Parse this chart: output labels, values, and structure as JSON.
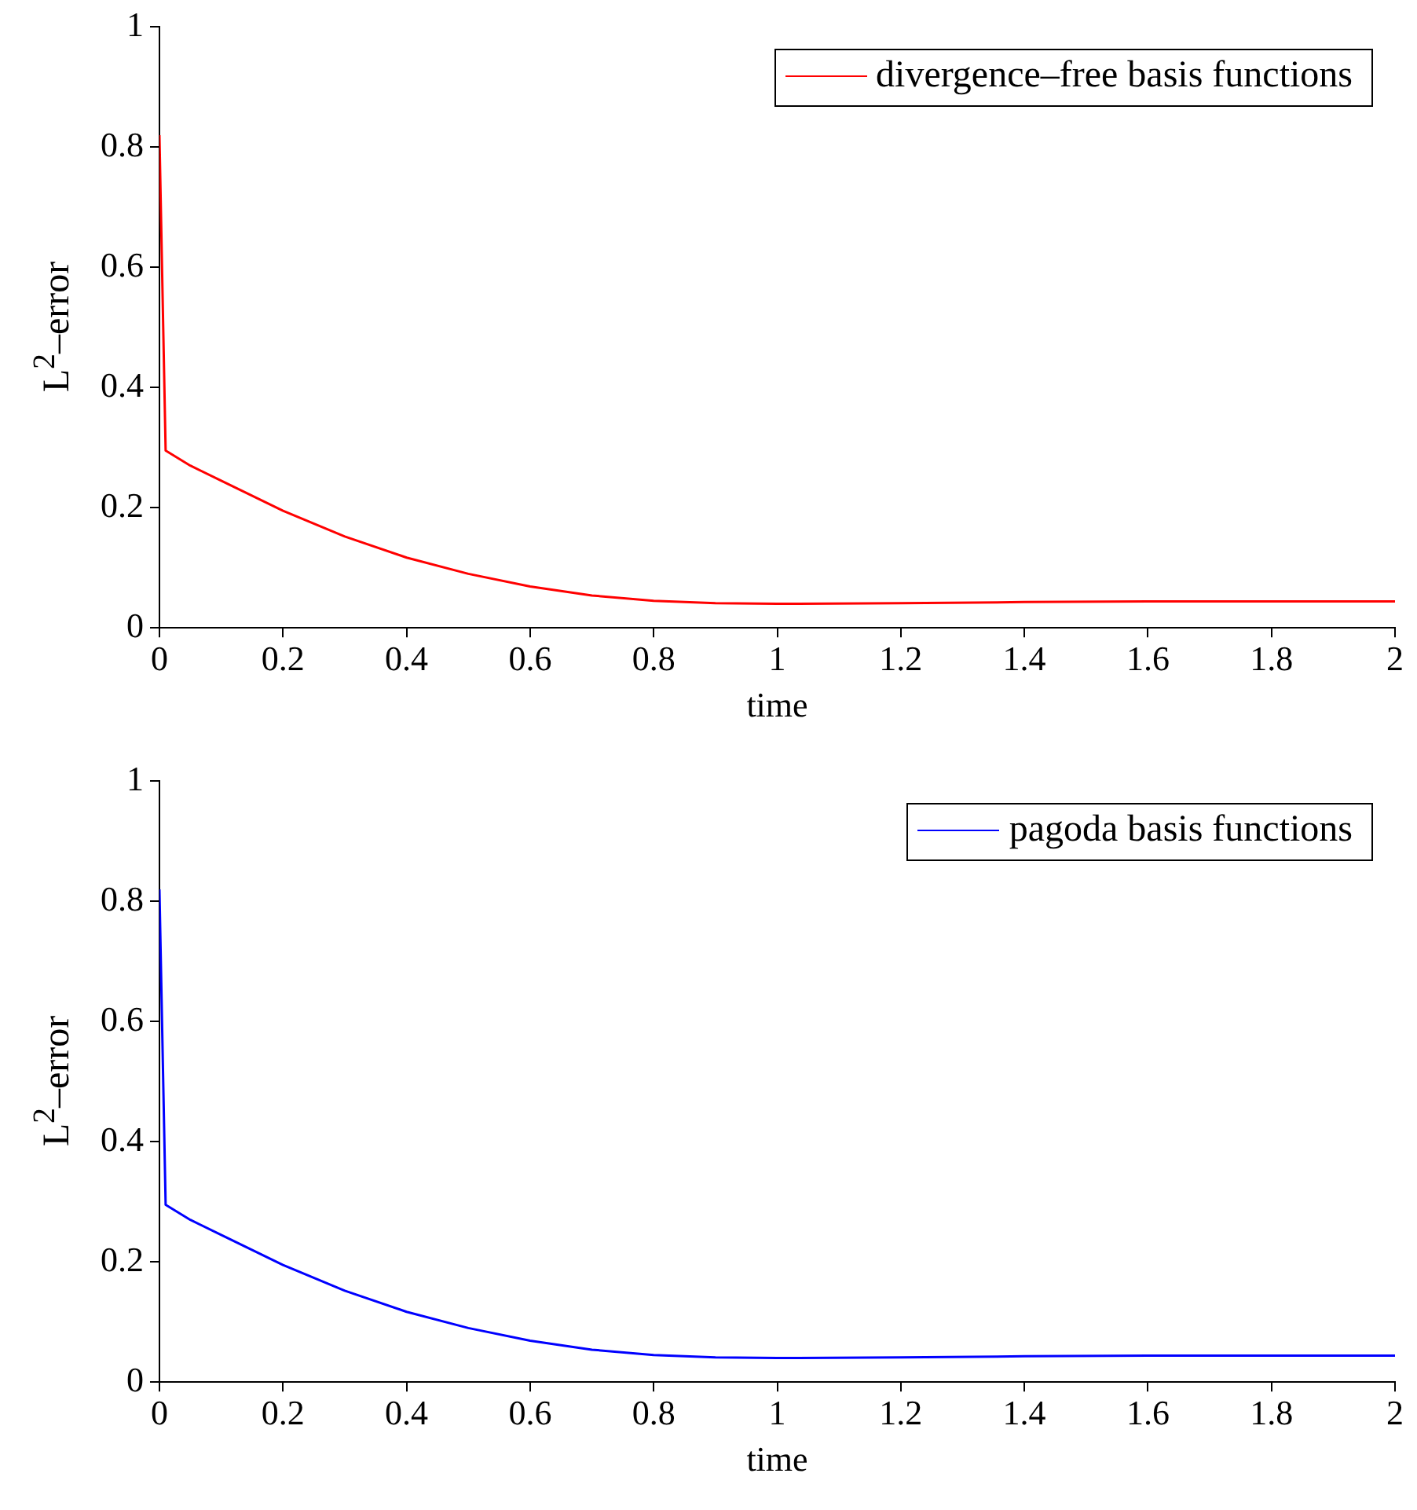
{
  "chart_data": [
    {
      "type": "line",
      "xlabel": "time",
      "ylabel": "L$^{2}$–error",
      "xlim": [
        0,
        2
      ],
      "ylim": [
        0,
        1
      ],
      "xticks": [
        0,
        0.2,
        0.4,
        0.6,
        0.8,
        1,
        1.2,
        1.4,
        1.6,
        1.8,
        2
      ],
      "yticks": [
        0,
        0.2,
        0.4,
        0.6,
        0.8,
        1
      ],
      "grid": false,
      "legend": "top right",
      "marker": "none",
      "x": [
        0,
        0.01,
        0.05,
        0.1,
        0.2,
        0.3,
        0.4,
        0.5,
        0.6,
        0.7,
        0.8,
        0.9,
        1.0,
        1.2,
        1.4,
        1.6,
        1.8,
        2.0
      ],
      "series": [
        {
          "name": "divergence–free basis functions",
          "color": "#ff0000",
          "values": [
            0.82,
            0.295,
            0.27,
            0.245,
            0.195,
            0.152,
            0.117,
            0.09,
            0.069,
            0.054,
            0.045,
            0.041,
            0.04,
            0.041,
            0.043,
            0.044,
            0.044,
            0.044
          ]
        }
      ]
    },
    {
      "type": "line",
      "xlabel": "time",
      "ylabel": "L$^{2}$–error",
      "xlim": [
        0,
        2
      ],
      "ylim": [
        0,
        1
      ],
      "xticks": [
        0,
        0.2,
        0.4,
        0.6,
        0.8,
        1,
        1.2,
        1.4,
        1.6,
        1.8,
        2
      ],
      "yticks": [
        0,
        0.2,
        0.4,
        0.6,
        0.8,
        1
      ],
      "grid": false,
      "legend": "top right",
      "marker": "none",
      "x": [
        0,
        0.01,
        0.05,
        0.1,
        0.2,
        0.3,
        0.4,
        0.5,
        0.6,
        0.7,
        0.8,
        0.9,
        1.0,
        1.2,
        1.4,
        1.6,
        1.8,
        2.0
      ],
      "series": [
        {
          "name": "pagoda basis functions",
          "color": "#0000ff",
          "values": [
            0.82,
            0.295,
            0.27,
            0.245,
            0.195,
            0.152,
            0.117,
            0.09,
            0.069,
            0.054,
            0.045,
            0.041,
            0.04,
            0.041,
            0.043,
            0.044,
            0.044,
            0.044
          ]
        }
      ]
    }
  ]
}
